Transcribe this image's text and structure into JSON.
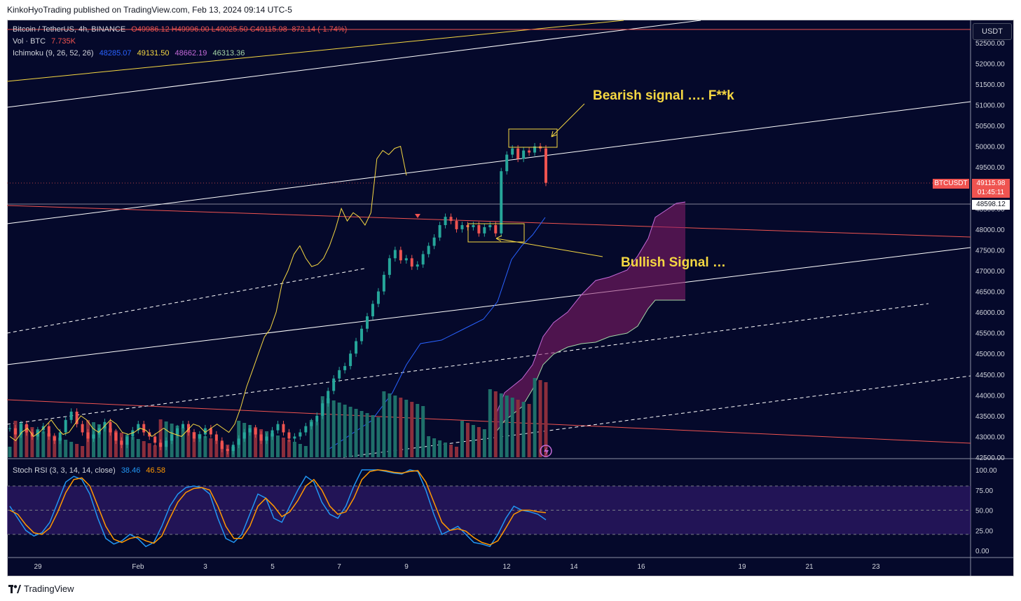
{
  "publish_line": "KinkoHyoTrading published on TradingView.com, Feb 13, 2024 09:14 UTC-5",
  "footer": {
    "brand": "TradingView"
  },
  "currency_button": "USDT",
  "legend": {
    "symbol": "Bitcoin / TetherUS, 4h, BINANCE",
    "ohlc": "O49986.12 H49996.00 L49025.50 C49115.98 -872.14 (-1.74%)",
    "vol_label": "Vol · BTC",
    "vol_value": "7.735K",
    "ichimoku_label": "Ichimoku (9, 26, 52, 26)",
    "ichimoku_values": [
      "48285.07",
      "49131.50",
      "48662.19",
      "46313.36"
    ],
    "stoch_label": "Stoch RSI (3, 3, 14, 14, close)",
    "stoch_values": [
      "38.46",
      "46.58"
    ]
  },
  "annotations": {
    "bearish": "Bearish signal …. F**k",
    "bullish": "Bullish Signal …"
  },
  "price_tags": {
    "symbol": "BTCUSDT",
    "last_price": "49115.98",
    "countdown": "01:45:11",
    "crosshair_price": "48598.12"
  },
  "colors": {
    "background": "#05092b",
    "bull": "#26a69a",
    "bear": "#ef5350",
    "annotation": "#f5d742",
    "cloud": "#8b1e6b",
    "stoch_k": "#2196f3",
    "stoch_d": "#ff9800"
  },
  "chart_data": [
    {
      "type": "line",
      "title": "Bitcoin / TetherUS, 4h, BINANCE",
      "y_ticks": [
        "52500.00",
        "52000.00",
        "51500.00",
        "51000.00",
        "50500.00",
        "50000.00",
        "49500.00",
        "49000.00",
        "48500.00",
        "48000.00",
        "47500.00",
        "47000.00",
        "46500.00",
        "46000.00",
        "45500.00",
        "45000.00",
        "44500.00",
        "44000.00",
        "43500.00",
        "43000.00",
        "42500.00"
      ],
      "x_ticks": [
        "29",
        "Feb",
        "3",
        "5",
        "7",
        "9",
        "12",
        "14",
        "16",
        "19",
        "21",
        "23"
      ],
      "ylim": [
        42500,
        52600
      ],
      "series": [
        {
          "name": "candles_close",
          "values": [
            43200,
            43050,
            43300,
            43100,
            43000,
            43150,
            43250,
            43000,
            42900,
            43100,
            43400,
            43600,
            43300,
            43100,
            42950,
            43050,
            43200,
            43350,
            43100,
            42900,
            42800,
            43000,
            43150,
            43300,
            43100,
            43000,
            42850,
            42750,
            42900,
            43050,
            43200,
            43300,
            43100,
            42950,
            43050,
            43200,
            43050,
            42900,
            42700,
            42650,
            42800,
            42950,
            43100,
            43200,
            43050,
            42900,
            43000,
            43150,
            43300,
            43100,
            42950,
            43000,
            43100,
            43250,
            43350,
            43500,
            43800,
            44100,
            44400,
            44600,
            44700,
            45000,
            45300,
            45600,
            45900,
            46200,
            46500,
            46900,
            47300,
            47500,
            47250,
            47300,
            47100,
            47150,
            47400,
            47600,
            47800,
            48100,
            48300,
            48200,
            48000,
            48100,
            48050,
            48100,
            47900,
            48050,
            48100,
            47900,
            49400,
            49800,
            49950,
            49700,
            49900,
            49850,
            50000,
            49950,
            49120
          ]
        },
        {
          "name": "chikou_span",
          "values": [
            43000,
            42900,
            43100,
            43200,
            43000,
            43100,
            43250,
            43400,
            43200,
            43050,
            43100,
            43300,
            43500,
            43400,
            43200,
            43100,
            43250,
            43400,
            43300,
            43100,
            43050,
            43100,
            43200,
            43150,
            43000,
            43100,
            43200,
            43100,
            43050,
            43000,
            43150,
            43300,
            43250,
            43100,
            43200,
            43300,
            43200,
            43100,
            43300,
            43700,
            44200,
            44600,
            45000,
            45400,
            45600,
            46000,
            46700,
            47000,
            47400,
            47600,
            47300,
            47100,
            47150,
            47300,
            47600,
            48000,
            48500,
            48200,
            48400,
            48300,
            48100,
            48400,
            49700,
            49900,
            49800,
            49950,
            50000,
            49300
          ]
        }
      ]
    },
    {
      "type": "line",
      "title": "Stoch RSI (3, 3, 14, 14, close)",
      "y_ticks": [
        "100.00",
        "75.00",
        "50.00",
        "25.00",
        "0.00"
      ],
      "ylim": [
        0,
        100
      ],
      "series": [
        {
          "name": "K",
          "values": [
            55,
            40,
            25,
            18,
            22,
            35,
            60,
            85,
            92,
            88,
            70,
            40,
            15,
            8,
            12,
            20,
            15,
            5,
            10,
            30,
            55,
            70,
            78,
            80,
            78,
            70,
            40,
            15,
            10,
            20,
            45,
            70,
            65,
            40,
            35,
            55,
            75,
            92,
            85,
            60,
            45,
            40,
            55,
            80,
            100,
            100,
            100,
            98,
            96,
            95,
            100,
            98,
            75,
            45,
            20,
            25,
            30,
            20,
            10,
            8,
            5,
            20,
            40,
            55,
            50,
            48,
            45,
            38
          ]
        },
        {
          "name": "D",
          "values": [
            50,
            45,
            32,
            22,
            20,
            28,
            48,
            72,
            88,
            90,
            80,
            55,
            30,
            14,
            10,
            15,
            17,
            12,
            9,
            18,
            40,
            60,
            72,
            77,
            78,
            75,
            55,
            30,
            15,
            15,
            30,
            55,
            65,
            55,
            42,
            48,
            62,
            80,
            88,
            75,
            55,
            45,
            48,
            65,
            88,
            98,
            100,
            99,
            97,
            96,
            98,
            99,
            85,
            60,
            35,
            25,
            27,
            24,
            16,
            10,
            7,
            12,
            28,
            45,
            50,
            50,
            48,
            47
          ]
        }
      ]
    }
  ]
}
